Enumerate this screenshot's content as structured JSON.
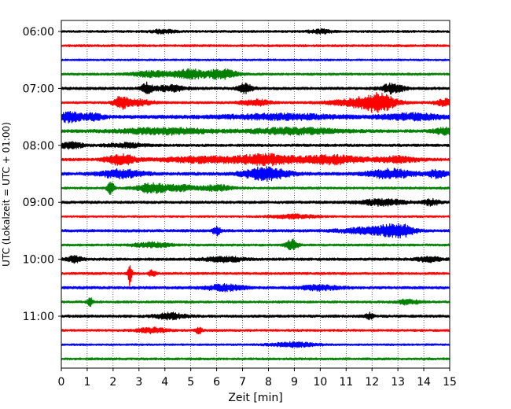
{
  "chart_data": {
    "type": "line",
    "title": "",
    "xlabel": "Zeit  [min]",
    "ylabel": "UTC (Lokalzeit = UTC + 01:00)",
    "xlim": [
      0,
      15
    ],
    "x_ticks": [
      "0",
      "1",
      "2",
      "3",
      "4",
      "5",
      "6",
      "7",
      "8",
      "9",
      "10",
      "11",
      "12",
      "13",
      "14",
      "15"
    ],
    "y_tick_labels": [
      "06:00",
      "07:00",
      "08:00",
      "09:00",
      "10:00",
      "11:00"
    ],
    "grid_x": true,
    "trace_interval_min": 15,
    "trace_start": "06:00",
    "trace_count": 24,
    "trace_colors": [
      "#000000",
      "#ff0000",
      "#0000ff",
      "#008000"
    ],
    "traces": [
      {
        "start": "06:00",
        "color": "#000000",
        "base_amp": 0.12,
        "events": [
          {
            "t": 3.9,
            "amp": 0.18,
            "w": 0.3
          },
          {
            "t": 10.0,
            "amp": 0.2,
            "w": 0.3
          }
        ]
      },
      {
        "start": "06:15",
        "color": "#ff0000",
        "base_amp": 0.12,
        "events": []
      },
      {
        "start": "06:30",
        "color": "#0000ff",
        "base_amp": 0.1,
        "events": []
      },
      {
        "start": "06:45",
        "color": "#008000",
        "base_amp": 0.12,
        "events": [
          {
            "t": 3.6,
            "amp": 0.3,
            "w": 0.6
          },
          {
            "t": 5.0,
            "amp": 0.45,
            "w": 0.4
          },
          {
            "t": 6.2,
            "amp": 0.5,
            "w": 0.4
          }
        ]
      },
      {
        "start": "07:00",
        "color": "#000000",
        "base_amp": 0.14,
        "events": [
          {
            "t": 3.3,
            "amp": 0.55,
            "w": 0.15
          },
          {
            "t": 4.2,
            "amp": 0.3,
            "w": 0.4
          },
          {
            "t": 7.1,
            "amp": 0.45,
            "w": 0.2
          },
          {
            "t": 12.8,
            "amp": 0.5,
            "w": 0.3
          }
        ]
      },
      {
        "start": "07:15",
        "color": "#ff0000",
        "base_amp": 0.12,
        "events": [
          {
            "t": 2.3,
            "amp": 0.6,
            "w": 0.2
          },
          {
            "t": 3.0,
            "amp": 0.3,
            "w": 0.4
          },
          {
            "t": 7.5,
            "amp": 0.3,
            "w": 0.4
          },
          {
            "t": 11.6,
            "amp": 0.45,
            "w": 0.8
          },
          {
            "t": 12.3,
            "amp": 0.7,
            "w": 0.4
          },
          {
            "t": 14.9,
            "amp": 0.4,
            "w": 0.3
          }
        ]
      },
      {
        "start": "07:30",
        "color": "#0000ff",
        "base_amp": 0.18,
        "events": [
          {
            "t": 0.3,
            "amp": 0.5,
            "w": 0.3
          },
          {
            "t": 1.2,
            "amp": 0.3,
            "w": 0.3
          },
          {
            "t": 8.5,
            "amp": 0.25,
            "w": 1.5
          },
          {
            "t": 13.6,
            "amp": 0.3,
            "w": 0.8
          }
        ]
      },
      {
        "start": "07:45",
        "color": "#008000",
        "base_amp": 0.16,
        "events": [
          {
            "t": 4.0,
            "amp": 0.3,
            "w": 1.2
          },
          {
            "t": 9.0,
            "amp": 0.3,
            "w": 1.2
          },
          {
            "t": 14.8,
            "amp": 0.3,
            "w": 0.3
          }
        ]
      },
      {
        "start": "08:00",
        "color": "#000000",
        "base_amp": 0.14,
        "events": [
          {
            "t": 0.3,
            "amp": 0.3,
            "w": 0.4
          },
          {
            "t": 2.5,
            "amp": 0.2,
            "w": 0.5
          }
        ]
      },
      {
        "start": "08:15",
        "color": "#ff0000",
        "base_amp": 0.14,
        "events": [
          {
            "t": 2.3,
            "amp": 0.55,
            "w": 0.4
          },
          {
            "t": 5.5,
            "amp": 0.3,
            "w": 1.2
          },
          {
            "t": 8.0,
            "amp": 0.5,
            "w": 0.8
          },
          {
            "t": 10.5,
            "amp": 0.45,
            "w": 0.8
          },
          {
            "t": 13.0,
            "amp": 0.3,
            "w": 0.6
          }
        ]
      },
      {
        "start": "08:30",
        "color": "#0000ff",
        "base_amp": 0.16,
        "events": [
          {
            "t": 2.3,
            "amp": 0.4,
            "w": 0.6
          },
          {
            "t": 7.9,
            "amp": 0.65,
            "w": 0.6
          },
          {
            "t": 12.7,
            "amp": 0.45,
            "w": 0.6
          },
          {
            "t": 14.5,
            "amp": 0.35,
            "w": 0.3
          }
        ]
      },
      {
        "start": "08:45",
        "color": "#008000",
        "base_amp": 0.12,
        "events": [
          {
            "t": 1.9,
            "amp": 0.6,
            "w": 0.1
          },
          {
            "t": 3.5,
            "amp": 0.5,
            "w": 0.4
          },
          {
            "t": 4.6,
            "amp": 0.3,
            "w": 0.4
          },
          {
            "t": 6.0,
            "amp": 0.3,
            "w": 0.4
          }
        ]
      },
      {
        "start": "09:00",
        "color": "#000000",
        "base_amp": 0.14,
        "events": [
          {
            "t": 12.4,
            "amp": 0.3,
            "w": 0.6
          },
          {
            "t": 14.3,
            "amp": 0.3,
            "w": 0.2
          }
        ]
      },
      {
        "start": "09:15",
        "color": "#ff0000",
        "base_amp": 0.1,
        "events": [
          {
            "t": 9.0,
            "amp": 0.2,
            "w": 0.6
          }
        ]
      },
      {
        "start": "09:30",
        "color": "#0000ff",
        "base_amp": 0.14,
        "events": [
          {
            "t": 6.0,
            "amp": 0.45,
            "w": 0.1
          },
          {
            "t": 12.0,
            "amp": 0.35,
            "w": 0.8
          },
          {
            "t": 13.0,
            "amp": 0.6,
            "w": 0.4
          }
        ]
      },
      {
        "start": "09:45",
        "color": "#008000",
        "base_amp": 0.12,
        "events": [
          {
            "t": 3.5,
            "amp": 0.25,
            "w": 0.5
          },
          {
            "t": 8.9,
            "amp": 0.6,
            "w": 0.15
          }
        ]
      },
      {
        "start": "10:00",
        "color": "#000000",
        "base_amp": 0.14,
        "events": [
          {
            "t": 0.5,
            "amp": 0.3,
            "w": 0.2
          },
          {
            "t": 6.3,
            "amp": 0.25,
            "w": 0.5
          },
          {
            "t": 14.2,
            "amp": 0.25,
            "w": 0.3
          }
        ]
      },
      {
        "start": "10:15",
        "color": "#ff0000",
        "base_amp": 0.12,
        "events": [
          {
            "t": 2.65,
            "amp": 1.3,
            "w": 0.05
          },
          {
            "t": 3.5,
            "amp": 0.3,
            "w": 0.1
          }
        ]
      },
      {
        "start": "10:30",
        "color": "#0000ff",
        "base_amp": 0.14,
        "events": [
          {
            "t": 6.3,
            "amp": 0.3,
            "w": 0.5
          },
          {
            "t": 10.0,
            "amp": 0.25,
            "w": 0.5
          }
        ]
      },
      {
        "start": "10:45",
        "color": "#008000",
        "base_amp": 0.12,
        "events": [
          {
            "t": 1.1,
            "amp": 0.45,
            "w": 0.08
          },
          {
            "t": 13.4,
            "amp": 0.25,
            "w": 0.3
          }
        ]
      },
      {
        "start": "11:00",
        "color": "#000000",
        "base_amp": 0.14,
        "events": [
          {
            "t": 4.2,
            "amp": 0.3,
            "w": 0.4
          },
          {
            "t": 11.9,
            "amp": 0.3,
            "w": 0.1
          }
        ]
      },
      {
        "start": "11:15",
        "color": "#ff0000",
        "base_amp": 0.12,
        "events": [
          {
            "t": 3.5,
            "amp": 0.25,
            "w": 0.4
          },
          {
            "t": 5.3,
            "amp": 0.3,
            "w": 0.1
          }
        ]
      },
      {
        "start": "11:30",
        "color": "#0000ff",
        "base_amp": 0.1,
        "events": [
          {
            "t": 9.0,
            "amp": 0.25,
            "w": 0.6
          }
        ]
      },
      {
        "start": "11:45",
        "color": "#008000",
        "base_amp": 0.12,
        "events": []
      }
    ]
  }
}
